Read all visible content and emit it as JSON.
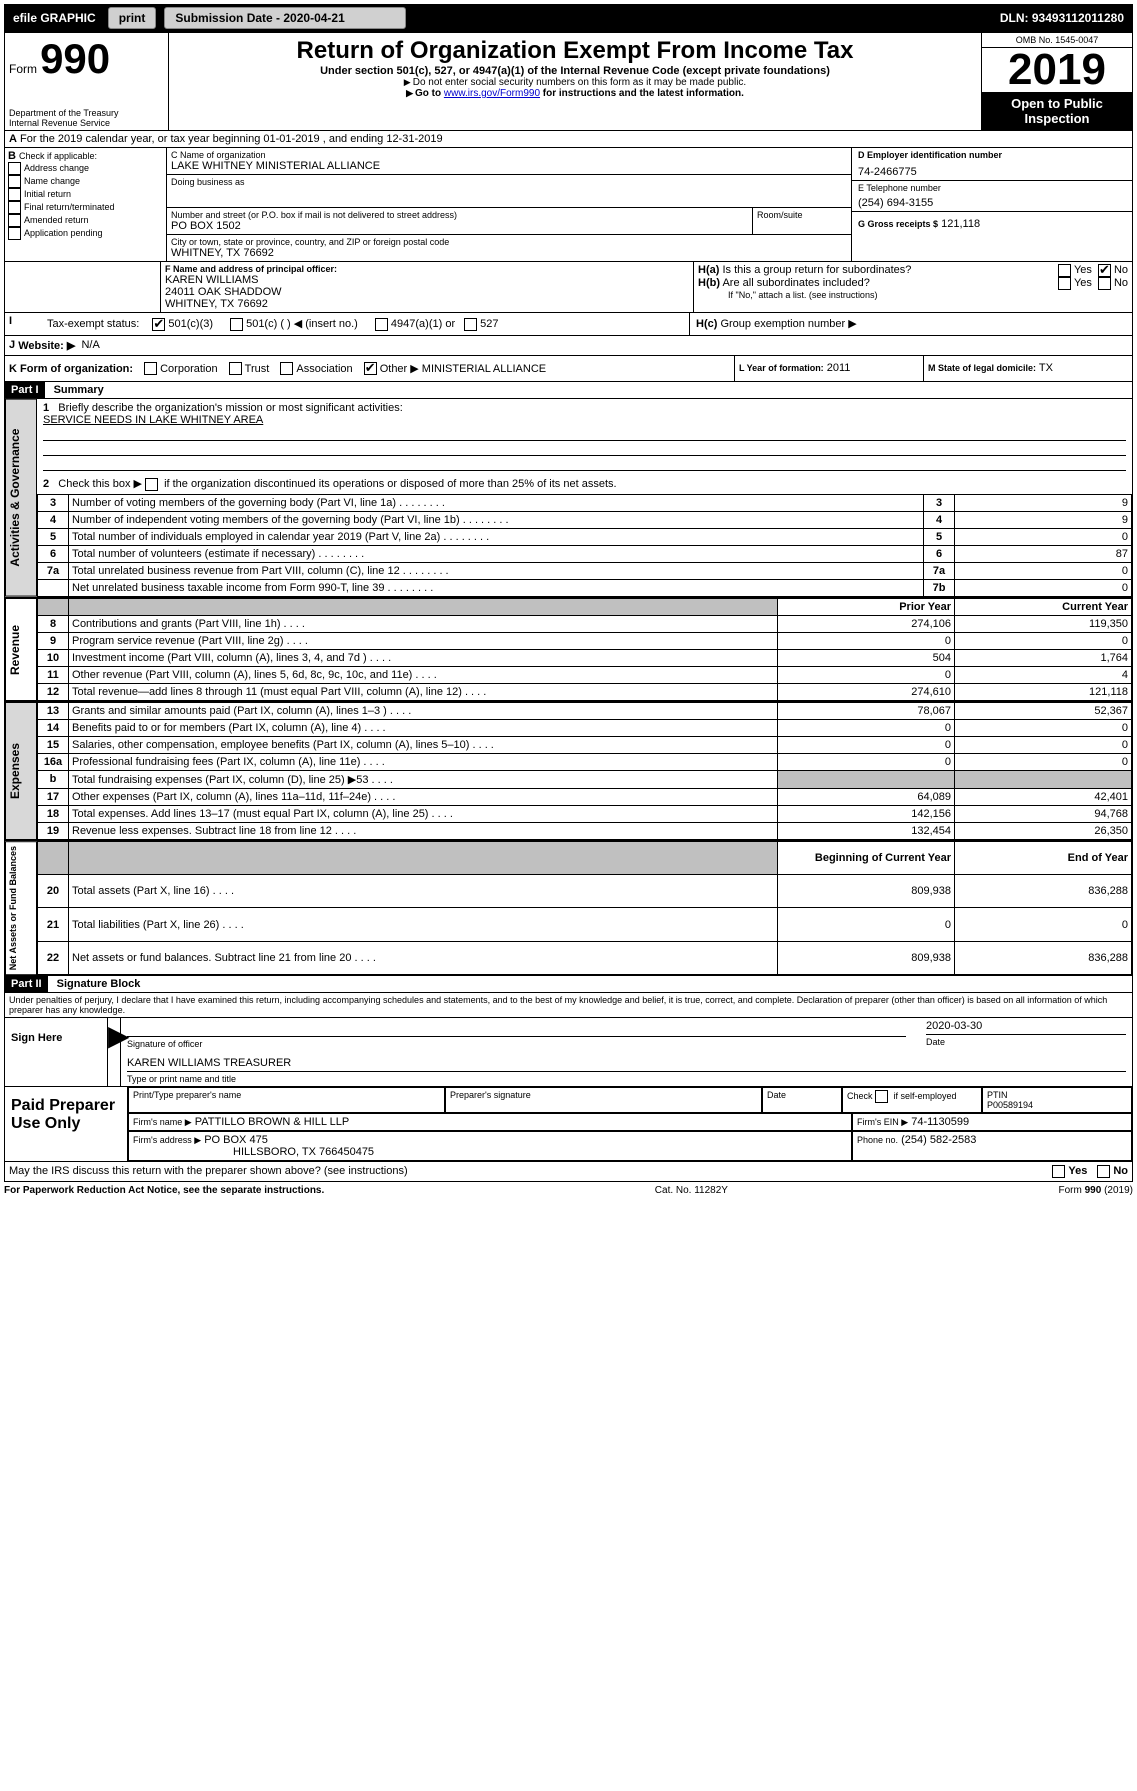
{
  "topbar": {
    "efile": "efile GRAPHIC",
    "print": "print",
    "sub_label": "Submission Date - 2020-04-21",
    "dln": "DLN: 93493112011280"
  },
  "header": {
    "form_word": "Form",
    "form_num": "990",
    "title": "Return of Organization Exempt From Income Tax",
    "subtitle": "Under section 501(c), 527, or 4947(a)(1) of the Internal Revenue Code (except private foundations)",
    "instr1": "Do not enter social security numbers on this form as it may be made public.",
    "instr2_pre": "Go to ",
    "instr2_link": "www.irs.gov/Form990",
    "instr2_post": " for instructions and the latest information.",
    "dept1": "Department of the Treasury",
    "dept2": "Internal Revenue Service",
    "omb": "OMB No. 1545-0047",
    "year": "2019",
    "openpublic": "Open to Public Inspection"
  },
  "boxA": "For the 2019 calendar year, or tax year beginning 01-01-2019    , and ending 12-31-2019",
  "boxB": {
    "label": "Check if applicable:",
    "opts": [
      "Address change",
      "Name change",
      "Initial return",
      "Final return/terminated",
      "Amended return",
      "Application pending"
    ]
  },
  "boxC": {
    "label": "C Name of organization",
    "name": "LAKE WHITNEY MINISTERIAL ALLIANCE",
    "dba_label": "Doing business as",
    "addr_label": "Number and street (or P.O. box if mail is not delivered to street address)",
    "room_label": "Room/suite",
    "addr": "PO BOX 1502",
    "city_label": "City or town, state or province, country, and ZIP or foreign postal code",
    "city": "WHITNEY, TX  76692"
  },
  "boxD": {
    "label": "D Employer identification number",
    "value": "74-2466775"
  },
  "boxE": {
    "label": "E Telephone number",
    "value": "(254) 694-3155"
  },
  "boxG": {
    "label": "G Gross receipts $",
    "value": "121,118"
  },
  "boxF": {
    "label": "F  Name and address of principal officer:",
    "name": "KAREN WILLIAMS",
    "addr1": "24011 OAK SHADDOW",
    "addr2": "WHITNEY, TX  76692"
  },
  "boxH": {
    "a": "Is this a group return for subordinates?",
    "b": "Are all subordinates included?",
    "b_note": "If \"No,\" attach a list. (see instructions)",
    "c": "Group exemption number ▶",
    "yes": "Yes",
    "no": "No"
  },
  "boxI": {
    "label": "Tax-exempt status:",
    "o1": "501(c)(3)",
    "o2": "501(c) (   ) ◀ (insert no.)",
    "o3": "4947(a)(1) or",
    "o4": "527"
  },
  "boxJ": {
    "label": "Website: ▶",
    "value": "N/A"
  },
  "boxK": {
    "label": "K Form of organization:",
    "corp": "Corporation",
    "trust": "Trust",
    "assoc": "Association",
    "other": "Other ▶",
    "other_val": "MINISTERIAL ALLIANCE"
  },
  "boxL": {
    "label": "L Year of formation:",
    "value": "2011"
  },
  "boxM": {
    "label": "M State of legal domicile:",
    "value": "TX"
  },
  "part1": {
    "hdr": "Part I",
    "title": "Summary",
    "l1_label": "Briefly describe the organization's mission or most significant activities:",
    "l1_text": "SERVICE NEEDS IN LAKE WHITNEY AREA",
    "l2": "Check this box ▶     if the organization discontinued its operations or disposed of more than 25% of its net assets.",
    "rows_gov": [
      {
        "n": "3",
        "t": "Number of voting members of the governing body (Part VI, line 1a)",
        "c": "3",
        "v": "9"
      },
      {
        "n": "4",
        "t": "Number of independent voting members of the governing body (Part VI, line 1b)",
        "c": "4",
        "v": "9"
      },
      {
        "n": "5",
        "t": "Total number of individuals employed in calendar year 2019 (Part V, line 2a)",
        "c": "5",
        "v": "0"
      },
      {
        "n": "6",
        "t": "Total number of volunteers (estimate if necessary)",
        "c": "6",
        "v": "87"
      },
      {
        "n": "7a",
        "t": "Total unrelated business revenue from Part VIII, column (C), line 12",
        "c": "7a",
        "v": "0"
      },
      {
        "n": "",
        "t": "Net unrelated business taxable income from Form 990-T, line 39",
        "c": "7b",
        "v": "0"
      }
    ],
    "col_prior": "Prior Year",
    "col_curr": "Current Year",
    "rows_rev": [
      {
        "n": "8",
        "t": "Contributions and grants (Part VIII, line 1h)",
        "p": "274,106",
        "c": "119,350"
      },
      {
        "n": "9",
        "t": "Program service revenue (Part VIII, line 2g)",
        "p": "0",
        "c": "0"
      },
      {
        "n": "10",
        "t": "Investment income (Part VIII, column (A), lines 3, 4, and 7d )",
        "p": "504",
        "c": "1,764"
      },
      {
        "n": "11",
        "t": "Other revenue (Part VIII, column (A), lines 5, 6d, 8c, 9c, 10c, and 11e)",
        "p": "0",
        "c": "4"
      },
      {
        "n": "12",
        "t": "Total revenue—add lines 8 through 11 (must equal Part VIII, column (A), line 12)",
        "p": "274,610",
        "c": "121,118"
      }
    ],
    "rows_exp": [
      {
        "n": "13",
        "t": "Grants and similar amounts paid (Part IX, column (A), lines 1–3 )",
        "p": "78,067",
        "c": "52,367"
      },
      {
        "n": "14",
        "t": "Benefits paid to or for members (Part IX, column (A), line 4)",
        "p": "0",
        "c": "0"
      },
      {
        "n": "15",
        "t": "Salaries, other compensation, employee benefits (Part IX, column (A), lines 5–10)",
        "p": "0",
        "c": "0"
      },
      {
        "n": "16a",
        "t": "Professional fundraising fees (Part IX, column (A), line 11e)",
        "p": "0",
        "c": "0"
      },
      {
        "n": "b",
        "t": "Total fundraising expenses (Part IX, column (D), line 25) ▶53",
        "p": "__shade__",
        "c": "__shade__"
      },
      {
        "n": "17",
        "t": "Other expenses (Part IX, column (A), lines 11a–11d, 11f–24e)",
        "p": "64,089",
        "c": "42,401"
      },
      {
        "n": "18",
        "t": "Total expenses. Add lines 13–17 (must equal Part IX, column (A), line 25)",
        "p": "142,156",
        "c": "94,768"
      },
      {
        "n": "19",
        "t": "Revenue less expenses. Subtract line 18 from line 12",
        "p": "132,454",
        "c": "26,350"
      }
    ],
    "col_beg": "Beginning of Current Year",
    "col_end": "End of Year",
    "rows_net": [
      {
        "n": "20",
        "t": "Total assets (Part X, line 16)",
        "p": "809,938",
        "c": "836,288"
      },
      {
        "n": "21",
        "t": "Total liabilities (Part X, line 26)",
        "p": "0",
        "c": "0"
      },
      {
        "n": "22",
        "t": "Net assets or fund balances. Subtract line 21 from line 20",
        "p": "809,938",
        "c": "836,288"
      }
    ],
    "vtab_gov": "Activities & Governance",
    "vtab_rev": "Revenue",
    "vtab_exp": "Expenses",
    "vtab_net": "Net Assets or Fund Balances"
  },
  "part2": {
    "hdr": "Part II",
    "title": "Signature Block",
    "perjury": "Under penalties of perjury, I declare that I have examined this return, including accompanying schedules and statements, and to the best of my knowledge and belief, it is true, correct, and complete. Declaration of preparer (other than officer) is based on all information of which preparer has any knowledge.",
    "sign_here": "Sign Here",
    "sig_officer": "Signature of officer",
    "sig_date": "2020-03-30",
    "date_label": "Date",
    "typed": "KAREN WILLIAMS  TREASURER",
    "typed_label": "Type or print name and title",
    "paid": "Paid Preparer Use Only",
    "prep_name_label": "Print/Type preparer's name",
    "prep_sig_label": "Preparer's signature",
    "prep_date_label": "Date",
    "check_self": "Check         if self-employed",
    "ptin_label": "PTIN",
    "ptin": "P00589194",
    "firm_name_label": "Firm's name      ▶",
    "firm_name": "PATTILLO BROWN & HILL LLP",
    "firm_ein_label": "Firm's EIN ▶",
    "firm_ein": "74-1130599",
    "firm_addr_label": "Firm's address ▶",
    "firm_addr1": "PO BOX 475",
    "firm_addr2": "HILLSBORO, TX  766450475",
    "phone_label": "Phone no.",
    "phone": "(254) 582-2583",
    "discuss": "May the IRS discuss this return with the preparer shown above? (see instructions)"
  },
  "footer": {
    "pra": "For Paperwork Reduction Act Notice, see the separate instructions.",
    "cat": "Cat. No. 11282Y",
    "form": "Form 990 (2019)"
  }
}
